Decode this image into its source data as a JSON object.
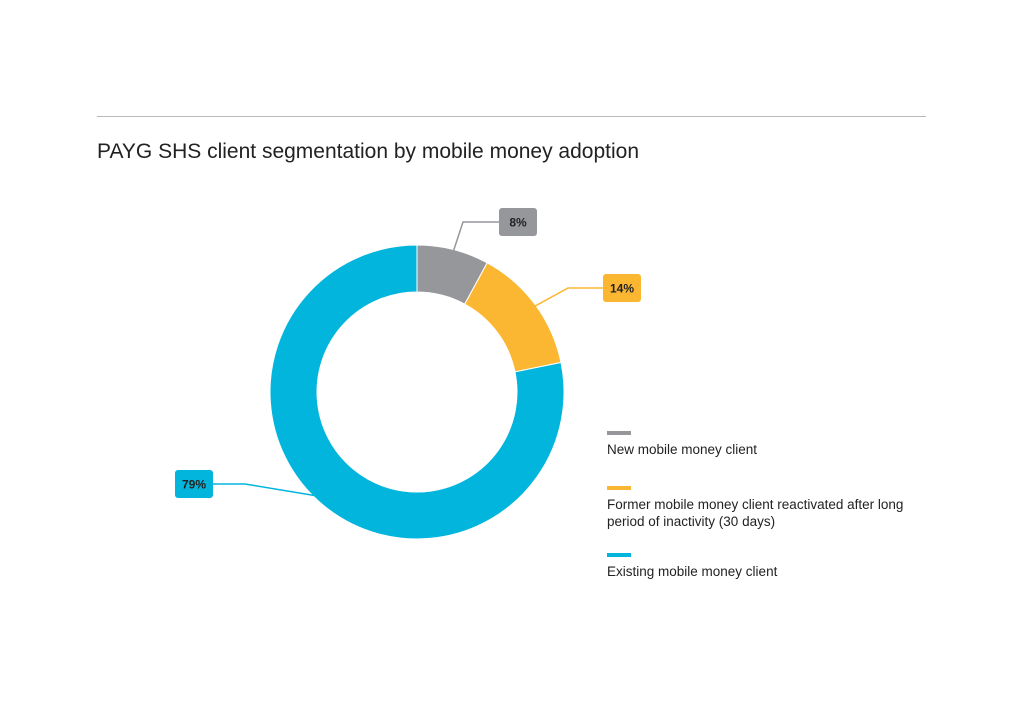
{
  "chart_data": {
    "type": "pie",
    "title": "PAYG SHS client segmentation by mobile money adoption",
    "series": [
      {
        "name": "New mobile money client",
        "value": 8,
        "label": "8%",
        "color": "#96979b"
      },
      {
        "name": "Former mobile money client reactivated after long period of inactivity (30 days)",
        "value": 14,
        "label": "14%",
        "color": "#fbb732"
      },
      {
        "name": "Existing mobile money client",
        "value": 79,
        "label": "79%",
        "color": "#02b5dc"
      }
    ],
    "legend": "right",
    "donut": true
  }
}
